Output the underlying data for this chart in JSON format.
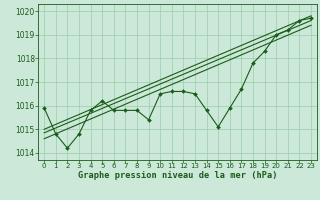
{
  "title": "Graphe pression niveau de la mer (hPa)",
  "bg_color": "#cce8d8",
  "grid_color": "#99ccaa",
  "line_color": "#1a5c1a",
  "ylim": [
    1013.7,
    1020.3
  ],
  "yticks": [
    1014,
    1015,
    1016,
    1017,
    1018,
    1019,
    1020
  ],
  "xlim": [
    -0.5,
    23.5
  ],
  "xticks": [
    0,
    1,
    2,
    3,
    4,
    5,
    6,
    7,
    8,
    9,
    10,
    11,
    12,
    13,
    14,
    15,
    16,
    17,
    18,
    19,
    20,
    21,
    22,
    23
  ],
  "main_series": [
    1015.9,
    1014.8,
    1014.2,
    1014.8,
    1015.8,
    1016.2,
    1015.8,
    1015.8,
    1015.8,
    1015.4,
    1016.5,
    1016.6,
    1016.6,
    1016.5,
    1015.8,
    1015.1,
    1015.9,
    1016.7,
    1017.8,
    1018.3,
    1019.0,
    1019.2,
    1019.6,
    1019.7
  ],
  "trend_lines": [
    [
      1014.85,
      1019.6
    ],
    [
      1014.6,
      1019.4
    ],
    [
      1015.0,
      1019.8
    ]
  ],
  "ytick_fontsize": 5.5,
  "xtick_fontsize": 5.0,
  "xlabel_fontsize": 6.2,
  "marker_size": 2.0,
  "line_width": 0.8
}
